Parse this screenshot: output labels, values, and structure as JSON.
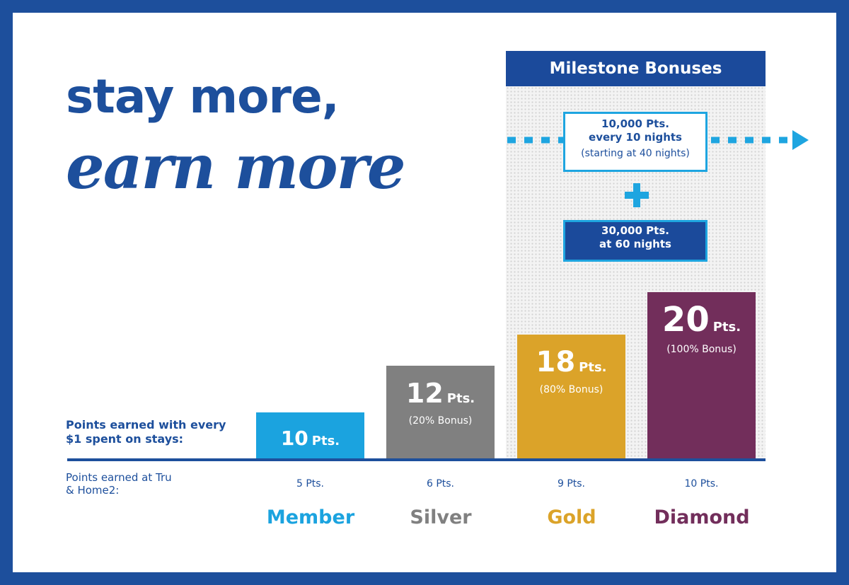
{
  "header": {
    "title_line1": "stay more,",
    "title_line2": "earn more"
  },
  "milestones": {
    "title": "Milestone Bonuses",
    "box1": {
      "line1": "10,000 Pts.",
      "line2": "every 10 nights",
      "line3": "(starting at 40 nights)"
    },
    "box2": {
      "line1": "30,000 Pts.",
      "line2": "at 60 nights"
    }
  },
  "labels": {
    "stays": "Points earned with every $1 spent on stays:",
    "tru": "Points earned at Tru & Home2:"
  },
  "tiers": [
    {
      "name": "Member",
      "color": "#1ba3df",
      "points": "10",
      "unit": "Pts.",
      "tru": "5 Pts."
    },
    {
      "name": "Silver",
      "color": "#808080",
      "points": "12",
      "unit": "Pts.",
      "bonus": "(20% Bonus)",
      "tru": "6 Pts."
    },
    {
      "name": "Gold",
      "color": "#dba329",
      "points": "18",
      "unit": "Pts.",
      "bonus": "(80% Bonus)",
      "tru": "9 Pts."
    },
    {
      "name": "Diamond",
      "color": "#722e5b",
      "points": "20",
      "unit": "Pts.",
      "bonus": "(100% Bonus)",
      "tru": "10 Pts."
    }
  ]
}
